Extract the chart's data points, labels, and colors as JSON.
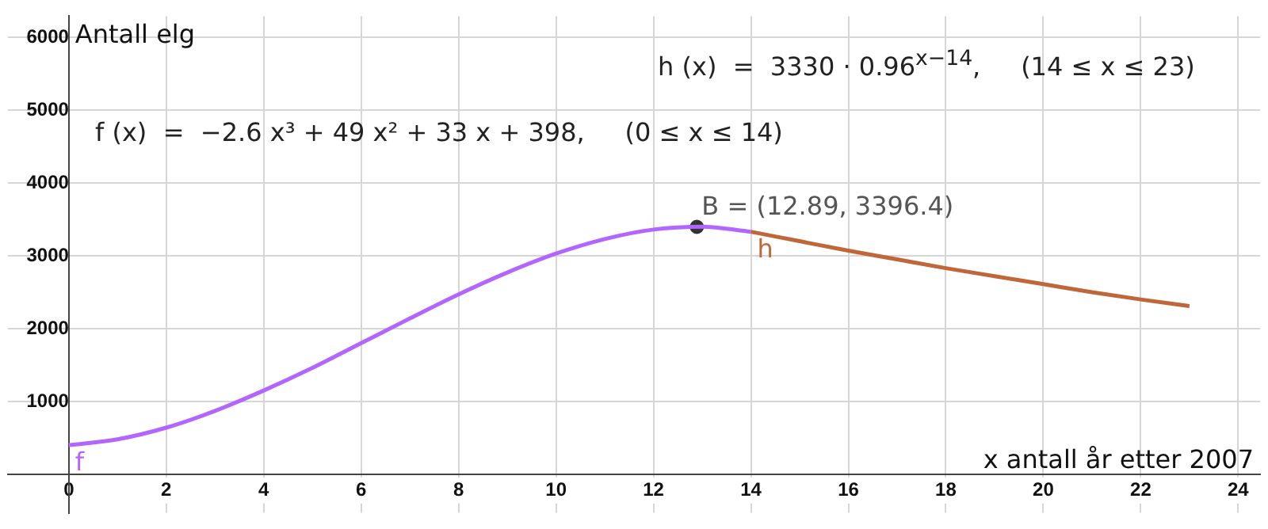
{
  "chart_data": {
    "type": "line",
    "ylabel": "Antall elg",
    "xlabel": "x antall år etter 2007",
    "annotations": [
      "h (x)  =  3330 · 0.96$^{x−14}$,     (14 ≤ x ≤ 23)",
      "f (x)  =  −2.6 x³ + 49 x² + 33 x + 398,     (0 ≤ x ≤ 14)",
      {
        "text": "B = (12.89, 3396.4)",
        "x": 12.89,
        "y": 3396.4
      }
    ],
    "series": [
      {
        "name": "f",
        "color": "#b266ff",
        "x": [
          0,
          1,
          2,
          3,
          4,
          5,
          6,
          7,
          8,
          9,
          10,
          11,
          12,
          13,
          14
        ],
        "values": [
          400,
          480,
          640,
          870,
          1150,
          1460,
          1800,
          2140,
          2470,
          2770,
          3030,
          3230,
          3360,
          3400,
          3330
        ]
      },
      {
        "name": "h",
        "color": "#c0673a",
        "x": [
          14,
          15,
          16,
          17,
          18,
          19,
          20,
          21,
          22,
          23
        ],
        "values": [
          3330,
          3200,
          3070,
          2950,
          2830,
          2720,
          2610,
          2500,
          2400,
          2310
        ]
      },
      {
        "type": "scatter",
        "color": "#333333",
        "marker": "circle",
        "x": [
          12.89
        ],
        "values": [
          3396.4
        ]
      }
    ],
    "xlim": [
      -1.25,
      24.45
    ],
    "ylim": [
      -530,
      6290
    ],
    "xticks": [
      0,
      2,
      4,
      6,
      8,
      10,
      12,
      14,
      16,
      18,
      20,
      22,
      24
    ],
    "yticks": [
      1000,
      2000,
      3000,
      4000,
      5000,
      6000
    ],
    "grid": true,
    "legend": false,
    "marker": "none",
    "line_style": "solid"
  }
}
